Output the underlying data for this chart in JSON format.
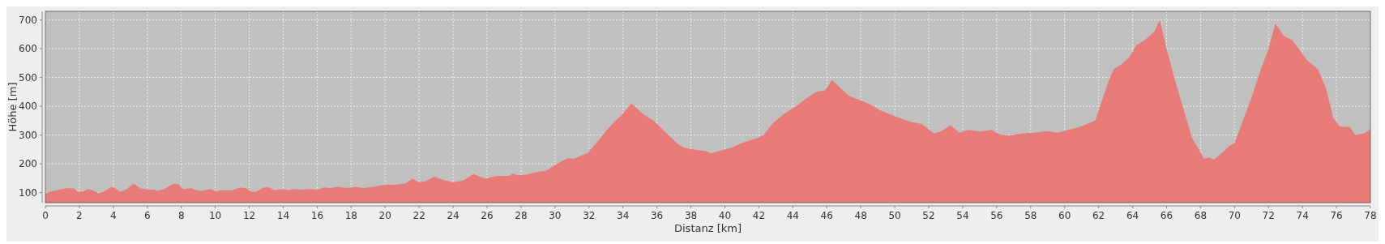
{
  "chart_data": {
    "type": "area",
    "xlabel": "Distanz [km]",
    "ylabel": "Höhe [m]",
    "xlim": [
      0,
      78
    ],
    "ylim": [
      65,
      730
    ],
    "xticks": [
      0,
      2,
      4,
      6,
      8,
      10,
      12,
      14,
      16,
      18,
      20,
      22,
      24,
      26,
      28,
      30,
      32,
      34,
      36,
      38,
      40,
      42,
      44,
      46,
      48,
      50,
      52,
      54,
      56,
      58,
      60,
      62,
      64,
      66,
      68,
      70,
      72,
      74,
      76,
      78
    ],
    "yticks": [
      100,
      200,
      300,
      400,
      500,
      600,
      700
    ],
    "grid": true,
    "series": [
      {
        "color": "#e87a78",
        "x": [
          0,
          0.3,
          1.3,
          1.7,
          1.9,
          2.2,
          2.5,
          2.8,
          3.1,
          3.4,
          3.9,
          4.1,
          4.4,
          4.8,
          5.2,
          5.6,
          6.0,
          6.4,
          6.6,
          7.0,
          7.5,
          7.8,
          8.1,
          8.6,
          8.9,
          9.2,
          9.7,
          10.1,
          10.3,
          11.0,
          11.4,
          11.8,
          12.1,
          12.4,
          12.8,
          13.1,
          13.5,
          14.0,
          14.3,
          14.6,
          15.0,
          15.6,
          16.0,
          16.4,
          16.8,
          17.2,
          17.7,
          18.3,
          18.7,
          19.3,
          20.0,
          20.6,
          21.2,
          21.6,
          22.0,
          22.4,
          22.9,
          23.4,
          24.0,
          24.6,
          25.2,
          25.9,
          26.6,
          27.3,
          27.5,
          27.8,
          28.3,
          28.8,
          29.5,
          30.0,
          30.5,
          30.8,
          31.1,
          31.5,
          31.9,
          32.4,
          33.0,
          33.5,
          34.0,
          34.5,
          35.2,
          35.8,
          36.5,
          37.2,
          37.6,
          38.3,
          38.9,
          39.2,
          39.6,
          40.4,
          40.9,
          41.4,
          41.9,
          42.3,
          42.8,
          43.5,
          44.2,
          44.8,
          45.4,
          45.9,
          46.3,
          46.8,
          47.3,
          48.0,
          48.5,
          49.2,
          50.0,
          50.9,
          51.6,
          51.9,
          52.3,
          52.7,
          53.3,
          53.8,
          54.3,
          55.0,
          55.7,
          56.2,
          56.7,
          57.5,
          58.2,
          59.0,
          59.6,
          60.2,
          60.8,
          61.3,
          61.8,
          62.2,
          62.6,
          62.9,
          63.3,
          63.8,
          64.2,
          64.8,
          65.3,
          65.6,
          66.0,
          66.5,
          67.0,
          67.5,
          67.9,
          68.2,
          68.5,
          68.8,
          69.3,
          69.7,
          70.0,
          70.5,
          71.0,
          71.5,
          72.0,
          72.4,
          72.9,
          73.4,
          73.9,
          74.3,
          74.9,
          75.4,
          75.8,
          76.2,
          76.8,
          77.1,
          77.6,
          78.0
        ],
        "values": [
          97,
          104,
          116,
          114,
          102,
          103,
          112,
          108,
          98,
          102,
          120,
          116,
          102,
          112,
          131,
          115,
          110,
          110,
          106,
          112,
          130,
          130,
          112,
          115,
          108,
          106,
          112,
          104,
          108,
          108,
          117,
          116,
          104,
          102,
          116,
          120,
          108,
          112,
          108,
          112,
          110,
          112,
          110,
          118,
          116,
          120,
          116,
          120,
          116,
          120,
          128,
          127,
          132,
          148,
          136,
          140,
          156,
          144,
          136,
          142,
          164,
          148,
          158,
          158,
          166,
          160,
          162,
          170,
          176,
          196,
          212,
          220,
          217,
          228,
          236,
          270,
          314,
          346,
          374,
          410,
          372,
          350,
          310,
          270,
          256,
          248,
          244,
          236,
          244,
          256,
          270,
          280,
          290,
          302,
          340,
          374,
          400,
          428,
          450,
          455,
          491,
          464,
          436,
          420,
          408,
          384,
          366,
          346,
          338,
          324,
          306,
          312,
          334,
          308,
          318,
          312,
          318,
          302,
          298,
          305,
          308,
          314,
          308,
          318,
          326,
          338,
          350,
          420,
          490,
          530,
          544,
          570,
          610,
          634,
          660,
          700,
          600,
          490,
          390,
          290,
          250,
          218,
          222,
          215,
          240,
          262,
          272,
          350,
          430,
          520,
          600,
          688,
          645,
          630,
          590,
          558,
          530,
          460,
          360,
          330,
          328,
          300,
          305,
          320
        ]
      }
    ]
  }
}
